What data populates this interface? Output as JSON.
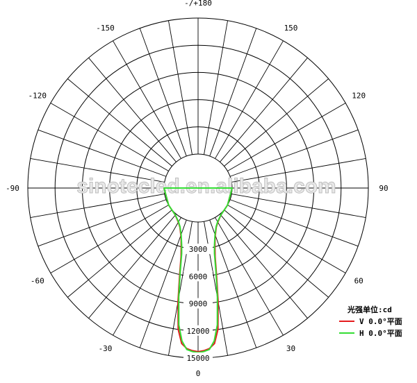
{
  "watermark": "sinotecled.en.alibaba.com",
  "chart_data": {
    "type": "polar-line",
    "unit_label": "光强单位:cd",
    "radial_ticks": [
      {
        "value": 3000,
        "label": "3000"
      },
      {
        "value": 6000,
        "label": "6000"
      },
      {
        "value": 9000,
        "label": "9000"
      },
      {
        "value": 12000,
        "label": "12000"
      },
      {
        "value": 15000,
        "label": "15000"
      }
    ],
    "angle_ticks": [
      {
        "angle": 0,
        "label": "0"
      },
      {
        "angle": 30,
        "label": "30"
      },
      {
        "angle": 60,
        "label": "60"
      },
      {
        "angle": 90,
        "label": "90"
      },
      {
        "angle": 120,
        "label": "120"
      },
      {
        "angle": 150,
        "label": "150"
      },
      {
        "angle": 180,
        "label": "-/+180"
      },
      {
        "angle": -150,
        "label": "-150"
      },
      {
        "angle": -120,
        "label": "-120"
      },
      {
        "angle": -90,
        "label": "-90"
      },
      {
        "angle": -60,
        "label": "-60"
      },
      {
        "angle": -30,
        "label": "-30"
      }
    ],
    "radial_max": 15000,
    "spoke_step_deg": 10,
    "series": [
      {
        "name": "V 0.0°平面",
        "color": "#e41a1c",
        "points": [
          [
            0,
            14300
          ],
          [
            2,
            14200
          ],
          [
            4,
            14000
          ],
          [
            6,
            13500
          ],
          [
            8,
            12000
          ],
          [
            10,
            9000
          ],
          [
            12,
            6000
          ],
          [
            14,
            4000
          ],
          [
            16,
            3000
          ],
          [
            18,
            2300
          ],
          [
            20,
            1800
          ],
          [
            25,
            1000
          ],
          [
            30,
            600
          ],
          [
            35,
            350
          ],
          [
            40,
            150
          ],
          [
            45,
            60
          ],
          [
            50,
            20
          ],
          [
            60,
            0
          ],
          [
            90,
            0
          ],
          [
            -90,
            0
          ],
          [
            -60,
            0
          ],
          [
            -50,
            20
          ],
          [
            -45,
            60
          ],
          [
            -40,
            150
          ],
          [
            -35,
            350
          ],
          [
            -30,
            600
          ],
          [
            -25,
            1000
          ],
          [
            -20,
            1800
          ],
          [
            -18,
            2300
          ],
          [
            -16,
            3000
          ],
          [
            -14,
            4000
          ],
          [
            -12,
            6000
          ],
          [
            -10,
            9000
          ],
          [
            -8,
            12000
          ],
          [
            -6,
            13500
          ],
          [
            -4,
            14000
          ],
          [
            -2,
            14200
          ],
          [
            0,
            14300
          ]
        ]
      },
      {
        "name": "H 0.0°平面",
        "color": "#33dd33",
        "points": [
          [
            0,
            14400
          ],
          [
            2,
            14300
          ],
          [
            4,
            14100
          ],
          [
            6,
            13200
          ],
          [
            8,
            11500
          ],
          [
            10,
            8500
          ],
          [
            12,
            5700
          ],
          [
            14,
            3700
          ],
          [
            16,
            2800
          ],
          [
            18,
            2200
          ],
          [
            20,
            1700
          ],
          [
            25,
            950
          ],
          [
            30,
            550
          ],
          [
            35,
            320
          ],
          [
            40,
            140
          ],
          [
            45,
            55
          ],
          [
            50,
            18
          ],
          [
            60,
            0
          ],
          [
            90,
            0
          ],
          [
            -90,
            0
          ],
          [
            -60,
            0
          ],
          [
            -50,
            18
          ],
          [
            -45,
            55
          ],
          [
            -40,
            140
          ],
          [
            -35,
            320
          ],
          [
            -30,
            550
          ],
          [
            -25,
            950
          ],
          [
            -20,
            1700
          ],
          [
            -18,
            2200
          ],
          [
            -16,
            2800
          ],
          [
            -14,
            3700
          ],
          [
            -12,
            5700
          ],
          [
            -10,
            8500
          ],
          [
            -8,
            11500
          ],
          [
            -6,
            13200
          ],
          [
            -4,
            14100
          ],
          [
            -2,
            14300
          ],
          [
            0,
            14400
          ]
        ]
      }
    ]
  }
}
